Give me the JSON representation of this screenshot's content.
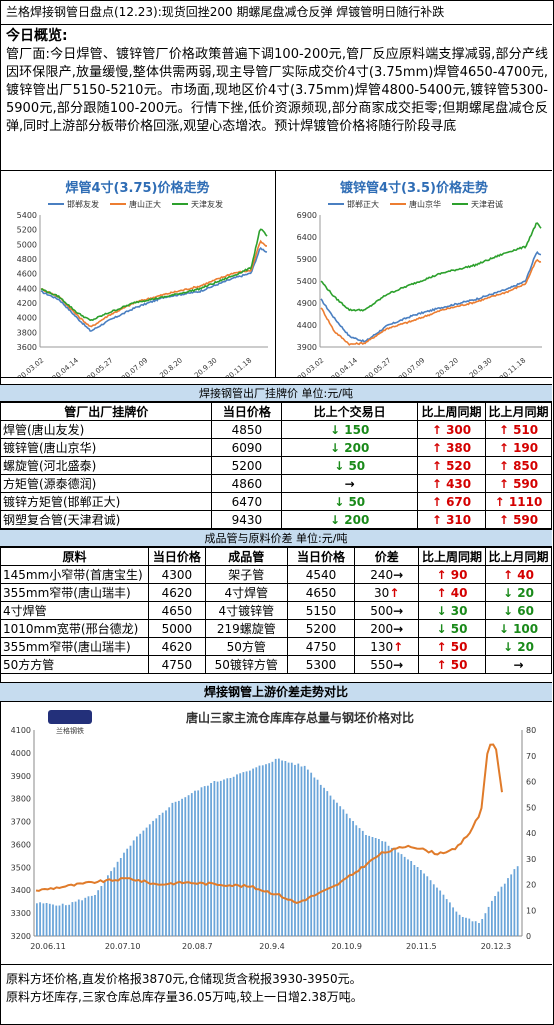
{
  "title": "兰格焊接钢管日盘点(12.23):现货回挫200 期螺尾盘减仓反弹 焊镀管明日随行补跌",
  "overview": {
    "heading": "今日概览:",
    "text": "管厂面:今日焊管、镀锌管厂价格政策普遍下调100-200元,管厂反应原料端支撑减弱,部分产线因环保限产,放量缓慢,整体供需两弱,现主导管厂实际成交价4寸(3.75mm)焊管4650-4700元,镀锌管出厂5150-5210元。市场面,现地区价4寸(3.75mm)焊管4800-5400元,镀锌管5300-5900元,部分跟随100-200元。行情下挫,低价资源频现,部分商家成交拒零;但期螺尾盘减仓反弹,同时上游部分板带价格回涨,观望心态增浓。预计焊镀管价格将随行阶段寻底"
  },
  "chart_data": [
    {
      "type": "line",
      "title": "焊管4寸(3.75)价格走势",
      "series": [
        {
          "name": "邯郸友发",
          "color": "#4a7fc1"
        },
        {
          "name": "唐山正大",
          "color": "#ec7d31"
        },
        {
          "name": "天津友发",
          "color": "#2ca02c"
        }
      ],
      "x_ticks": [
        "20.03.02",
        "20.04.14",
        "20.05.27",
        "20.07.09",
        "20.8.20",
        "20.9.30",
        "20.11.18"
      ],
      "y_ticks": [
        3600,
        3800,
        4000,
        4200,
        4400,
        4600,
        4800,
        5000,
        5200,
        5400
      ],
      "ylim": [
        3600,
        5400
      ]
    },
    {
      "type": "line",
      "title": "镀锌管4寸(3.5)价格走势",
      "series": [
        {
          "name": "邯郸正大",
          "color": "#4a7fc1"
        },
        {
          "name": "唐山京华",
          "color": "#ec7d31"
        },
        {
          "name": "天津君诚",
          "color": "#2ca02c"
        }
      ],
      "x_ticks": [
        "20.03.02",
        "20.04.14",
        "20.05.27",
        "20.07.09",
        "20.8.20",
        "20.9.30",
        "20.11.18"
      ],
      "y_ticks": [
        3900,
        4400,
        4900,
        5400,
        5900,
        6400,
        6900
      ],
      "ylim": [
        3900,
        6900
      ]
    },
    {
      "type": "line",
      "title": "唐山三家主流仓库库存总量与钢坯价格对比",
      "x_ticks": [
        "20.06.11",
        "20.07.10",
        "20.08.7",
        "20.9.4",
        "20.10.9",
        "20.11.5",
        "20.12.3"
      ],
      "y_left_ticks": [
        3200,
        3300,
        3400,
        3500,
        3600,
        3700,
        3800,
        3900,
        4000,
        4100
      ],
      "y_right_ticks": [
        0,
        10,
        20,
        30,
        40,
        50,
        60,
        70,
        80
      ],
      "ylim_left": [
        3200,
        4100
      ],
      "ylim_right": [
        0,
        80
      ]
    }
  ],
  "table1": {
    "header": "焊接钢管出厂挂牌价  单位:元/吨",
    "columns": [
      "管厂出厂挂牌价",
      "当日价格",
      "比上个交易日",
      "比上周同期",
      "比上月同期"
    ],
    "rows": [
      {
        "name": "焊管(唐山友发)",
        "price": "4850",
        "d1": "150",
        "d1dir": "down",
        "w": "300",
        "wdir": "up",
        "m": "510",
        "mdir": "up"
      },
      {
        "name": "镀锌管(唐山京华)",
        "price": "6090",
        "d1": "200",
        "d1dir": "down",
        "w": "380",
        "wdir": "up",
        "m": "190",
        "mdir": "up"
      },
      {
        "name": "螺旋管(河北盛泰)",
        "price": "5200",
        "d1": "50",
        "d1dir": "down",
        "w": "520",
        "wdir": "up",
        "m": "850",
        "mdir": "up"
      },
      {
        "name": "方矩管(源泰德润)",
        "price": "4860",
        "d1": "",
        "d1dir": "flat",
        "w": "430",
        "wdir": "up",
        "m": "590",
        "mdir": "up"
      },
      {
        "name": "镀锌方矩管(邯郸正大)",
        "price": "6470",
        "d1": "50",
        "d1dir": "down",
        "w": "670",
        "wdir": "up",
        "m": "1110",
        "mdir": "up"
      },
      {
        "name": "钢塑复合管(天津君诚)",
        "price": "9430",
        "d1": "200",
        "d1dir": "down",
        "w": "310",
        "wdir": "up",
        "m": "590",
        "mdir": "up"
      }
    ]
  },
  "table2": {
    "header": "成品管与原料价差  单位:元/吨",
    "columns": [
      "原料",
      "当日价格",
      "成品管",
      "当日价格",
      "价差",
      "比上周同期",
      "比上月同期"
    ],
    "rows": [
      {
        "raw": "145mm小窄带(首唐宝生)",
        "rp": "4300",
        "prod": "架子管",
        "pp": "4540",
        "diff": "240",
        "ddir": "flat",
        "w": "90",
        "wdir": "up",
        "m": "40",
        "mdir": "up"
      },
      {
        "raw": "355mm窄带(唐山瑞丰)",
        "rp": "4620",
        "prod": "4寸焊管",
        "pp": "4650",
        "diff": "30",
        "ddir": "up",
        "w": "40",
        "wdir": "up",
        "m": "20",
        "mdir": "down"
      },
      {
        "raw": "4寸焊管",
        "rp": "4650",
        "prod": "4寸镀锌管",
        "pp": "5150",
        "diff": "500",
        "ddir": "flat",
        "w": "30",
        "wdir": "down",
        "m": "60",
        "mdir": "down"
      },
      {
        "raw": "1010mm宽带(邢台德龙)",
        "rp": "5000",
        "prod": "219螺旋管",
        "pp": "5200",
        "diff": "200",
        "ddir": "flat",
        "w": "50",
        "wdir": "down",
        "m": "100",
        "mdir": "down"
      },
      {
        "raw": "355mm窄带(唐山瑞丰)",
        "rp": "4620",
        "prod": "50方管",
        "pp": "4750",
        "diff": "130",
        "ddir": "up",
        "w": "50",
        "wdir": "up",
        "m": "20",
        "mdir": "down"
      },
      {
        "raw": "50方方管",
        "rp": "4750",
        "prod": "50镀锌方管",
        "pp": "5300",
        "diff": "550",
        "ddir": "flat",
        "w": "50",
        "wdir": "up",
        "m": "",
        "mdir": "flat"
      }
    ]
  },
  "chart3_header": "焊接钢管上游价差走势对比",
  "chart3_logo": "兰格钢铁",
  "footer": {
    "line1": "原料方坯价格,直发价格报3870元,仓储现货含税报3930-3950元。",
    "line2": "原料方坯库存,三家仓库总库存量36.05万吨,较上一日增2.38万吨。"
  },
  "colors": {
    "up": "#d40000",
    "down": "#1a8a1a",
    "header_bg": "#c6dcef",
    "title_blue": "#2f6db5"
  }
}
